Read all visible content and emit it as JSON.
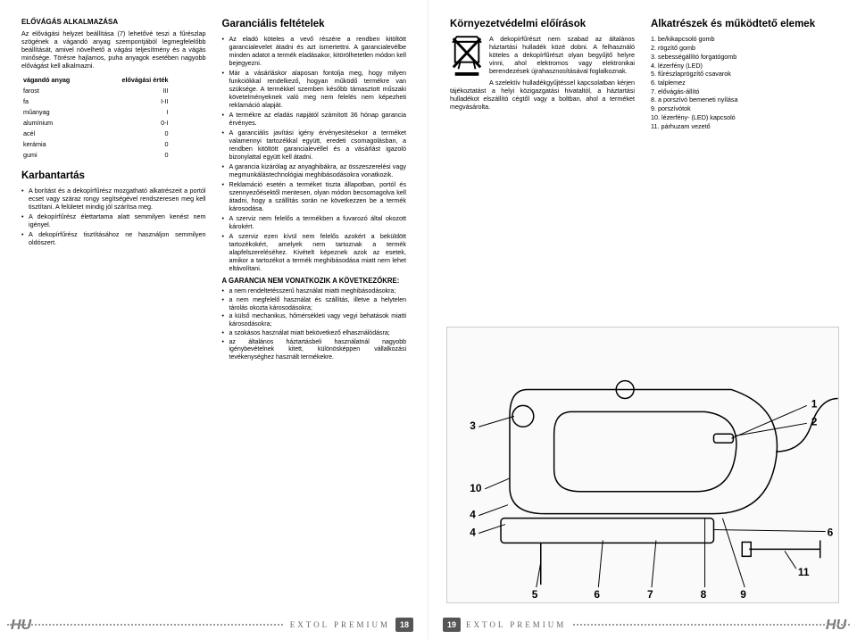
{
  "leftPage": {
    "col1": {
      "h1": "ELŐVÁGÁS ALKALMAZÁSA",
      "p1": "Az elővágási helyzet beállítása (7) lehetővé teszi a fűrészlap szögének a vágandó anyag szempontjából legmegfelelőbb beállítását, amivel növelhető a vágási teljesítmény és a vágás minősége. Törésre hajlamos, puha anyagok esetében nagyobb elővágást kell alkalmazni.",
      "th1": "vágandó anyag",
      "th2": "elővágási érték",
      "materials": [
        [
          "farost",
          "III"
        ],
        [
          "fa",
          "I-II"
        ],
        [
          "műanyag",
          "I"
        ],
        [
          "alumínium",
          "0-I"
        ],
        [
          "acél",
          "0"
        ],
        [
          "kerámia",
          "0"
        ],
        [
          "gumi",
          "0"
        ]
      ],
      "h2": "Karbantartás",
      "maint": [
        "A borítást és a dekopírfűrész mozgatható alkatrészeit a portól ecset vagy száraz rongy segítségével rendszeresen meg kell tisztítani. A felületet mindig jól szárítsa meg.",
        "A dekopírfűrész élettartama alatt semmilyen kenést nem igényel.",
        "A dekopírfűrész tisztításához ne használjon semmilyen oldószert."
      ]
    },
    "col2": {
      "h1": "Garanciális feltételek",
      "items": [
        "Az eladó köteles a vevő részére a rendben kitöltött garancialevelet átadni és azt ismertettni. A garancialevélbe minden adatot a termék eladásakor, kitörölhetetlen módon kell bejegyezni.",
        "Már a vásárláskor alaposan fontolja meg, hogy milyen funkciókkal rendelkező, hogyan működő termékre van szüksége. A termékkel szemben később támasztott műszaki követelményeknek való meg nem felelés nem képezheti reklamáció alapját.",
        "A termékre az eladás napjától számított 36 hónap garancia érvényes.",
        "A garanciális javítási igény érvényesítésekor a terméket valamennyi tartozékkal együtt, eredeti csomagolásban, a rendben kitöltött garancialevéllel és a vásárlást igazoló bizonylattal együtt kell átadni.",
        "A garancia kizárólag az anyaghibákra, az összeszerelési vagy megmunkálástechnológiai meghibásodásokra vonatkozik.",
        "Reklamáció esetén a terméket tiszta állapotban, portól és szennyezőésektől mentesen, olyan módon becsomagolva kell átadni, hogy a szállítás során ne következzen be a termék károsodása.",
        "A szerviz nem felelős a termékben a fuvarozó által okozott károkért.",
        "A szerviz ezen kívül nem felelős azokért a beküldött tartozékokért, amelyek nem tartoznak a termék alapfelszereléséhez. Kivételt képeznek azok az esetek, amikor a tartozékot a termék meghibásodása miatt nem lehet eltávolítani."
      ],
      "sub": "A GARANCIA NEM VONATKOZIK A KÖVETKEZŐKRE:",
      "excl": [
        "a nem rendeltetésszerű használat miatti meghibásodásokra;",
        "a nem megfelelő használat és szállítás, illetve a helytelen tárolás okozta károsodásokra;",
        "a külső mechanikus, hőmérsékleti vagy vegyi behatások miatti károsodásokra;",
        "a szokásos használat miatt bekövetkező elhasználódásra;",
        "az általános háztartásbeli használatnál nagyobb igénybevételnek kitett, különösképpen vállalkozási tevékenységhez használt termékekre."
      ]
    }
  },
  "rightPage": {
    "col1": {
      "h1": "Környezetvédelmi előírások",
      "p1": "A dekopírfűrészt nem szabad az általános háztartási hulladék közé dobni. A felhasználó köteles a dekopírfűrészt olyan begyűjtő helyre vinni, ahol elektromos vagy elektronikai berendezések újrahasznosításával foglalkoznak.",
      "p2": "A szelektív hulladékgyűjtéssel kapcsolatban kérjen tájékoztatást a helyi közigazgatási hivataltól, a háztartási hulladékot elszállító cégtől vagy a boltban, ahol a terméket megvásárolta."
    },
    "col2": {
      "h1": "Alkatrészek és működtető elemek",
      "parts": [
        "1. be/kikapcsoló gomb",
        "2. rögzítő gomb",
        "3. sebességállító forgatógomb",
        "4. lézerfény (LED)",
        "5. fűrészlaprögzítő csavarok",
        "6. talplemez",
        "7. elővágás-állító",
        "8. a porszívó bemeneti nyílása",
        "9. porszívótok",
        "10. lézerfény- (LED) kapcsoló",
        "11. párhuzam vezető"
      ]
    },
    "callouts": [
      "1",
      "2",
      "3",
      "4",
      "4",
      "5",
      "6",
      "7",
      "8",
      "9",
      "10",
      "11"
    ]
  },
  "footer": {
    "brand": "EXTOL PREMIUM",
    "pLeft": "18",
    "pRight": "19",
    "lang": "HU"
  }
}
